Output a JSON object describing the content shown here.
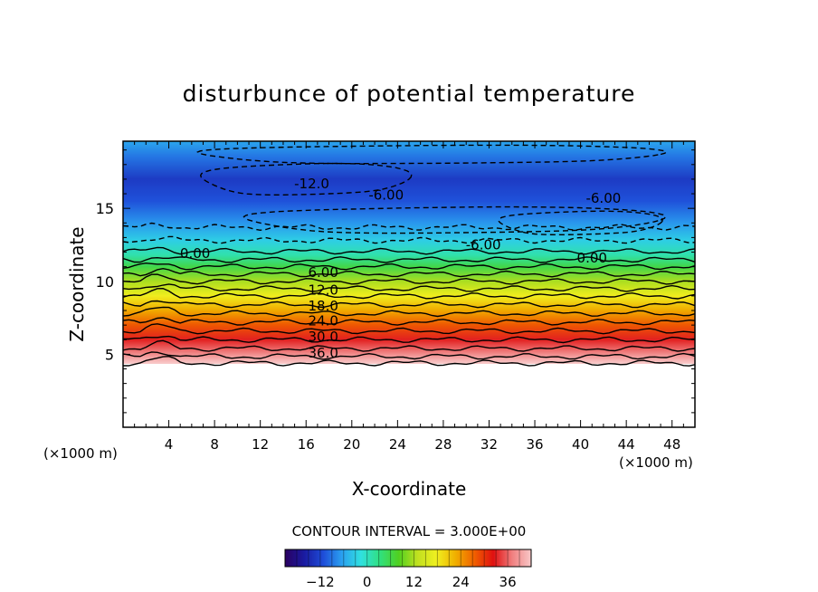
{
  "chart_data": {
    "type": "heatmap",
    "title": "disturbunce of potential temperature",
    "xlabel": "X-coordinate",
    "ylabel": "Z-coordinate",
    "x_unit": "(×1000 m)",
    "z_unit": "(×1000 m)",
    "xlim": [
      0,
      50
    ],
    "ylim": [
      0,
      19.6
    ],
    "x_ticks": [
      4,
      8,
      12,
      16,
      20,
      24,
      28,
      32,
      36,
      40,
      44,
      48
    ],
    "y_ticks": [
      5,
      10,
      15
    ],
    "contour_interval_text": "CONTOUR INTERVAL = 3.000E+00",
    "contour_interval": 3.0,
    "colorbar": {
      "range": [
        -21,
        42
      ],
      "ticks": [
        -12,
        0,
        12,
        24,
        36
      ],
      "colors": [
        "#2a0060",
        "#1a1aa0",
        "#1e4cd8",
        "#2aa0f0",
        "#30e0e0",
        "#30e080",
        "#50d020",
        "#c0e020",
        "#f0f020",
        "#f0b000",
        "#f06000",
        "#e01010",
        "#f08080",
        "#f8c8c8"
      ]
    },
    "profile_z": [
      0,
      4.4,
      5.0,
      6.0,
      7.0,
      8.0,
      9.0,
      10.0,
      11.0,
      11.8,
      12.8,
      14.0,
      15.5,
      17.0,
      18.5,
      19.6
    ],
    "profile_value": [
      null,
      42,
      38,
      33,
      28,
      23,
      18,
      12,
      6,
      1,
      -3,
      -7,
      -11,
      -13,
      -9,
      -6
    ],
    "contour_labels": [
      {
        "text": "-12.0",
        "x": 16.5,
        "z": 16.7
      },
      {
        "text": "-6.00",
        "x": 23.0,
        "z": 15.9
      },
      {
        "text": "-6.00",
        "x": 42.0,
        "z": 15.7
      },
      {
        "text": "-6.00",
        "x": 31.5,
        "z": 12.5
      },
      {
        "text": "0.00",
        "x": 6.3,
        "z": 11.9
      },
      {
        "text": "0.00",
        "x": 41.0,
        "z": 11.6
      },
      {
        "text": "6.00",
        "x": 17.5,
        "z": 10.6
      },
      {
        "text": "12.0",
        "x": 17.5,
        "z": 9.4
      },
      {
        "text": "18.0",
        "x": 17.5,
        "z": 8.3
      },
      {
        "text": "24.0",
        "x": 17.5,
        "z": 7.3
      },
      {
        "text": "30.0",
        "x": 17.5,
        "z": 6.2
      },
      {
        "text": "36.0",
        "x": 17.5,
        "z": 5.1
      }
    ]
  }
}
